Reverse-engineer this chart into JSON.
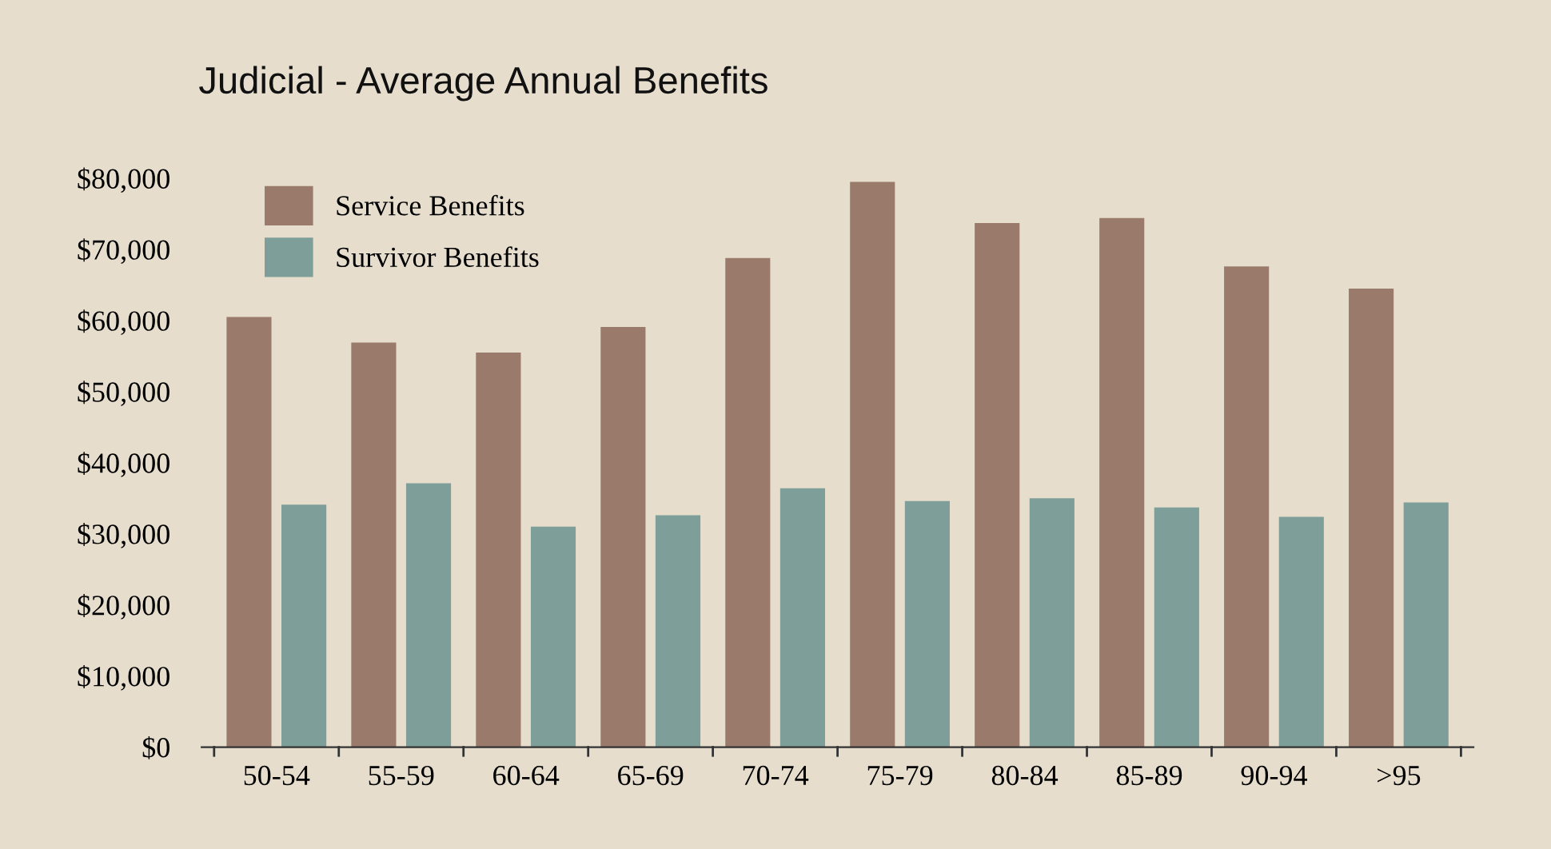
{
  "chart_data": {
    "type": "bar",
    "title": "Judicial - Average Annual Benefits",
    "categories": [
      "50-54",
      "55-59",
      "60-64",
      "65-69",
      "70-74",
      "75-79",
      "80-84",
      "85-89",
      "90-94",
      ">95"
    ],
    "series": [
      {
        "name": "Service Benefits",
        "color": "#9a7b6b",
        "values": [
          60500,
          56900,
          55500,
          59100,
          68800,
          79500,
          73700,
          74400,
          67600,
          64500
        ]
      },
      {
        "name": "Survivor Benefits",
        "color": "#7e9e99",
        "values": [
          34100,
          37100,
          31000,
          32600,
          36400,
          34600,
          35000,
          33700,
          32400,
          34400
        ]
      }
    ],
    "ylim": [
      0,
      80000
    ],
    "yticks": [
      {
        "value": 0,
        "label": "$0"
      },
      {
        "value": 10000,
        "label": "$10,000"
      },
      {
        "value": 20000,
        "label": "$20,000"
      },
      {
        "value": 30000,
        "label": "$30,000"
      },
      {
        "value": 40000,
        "label": "$40,000"
      },
      {
        "value": 50000,
        "label": "$50,000"
      },
      {
        "value": 60000,
        "label": "$60,000"
      },
      {
        "value": 70000,
        "label": "$70,000"
      },
      {
        "value": 80000,
        "label": "$80,000"
      }
    ],
    "grid": false,
    "legend": "top left"
  }
}
